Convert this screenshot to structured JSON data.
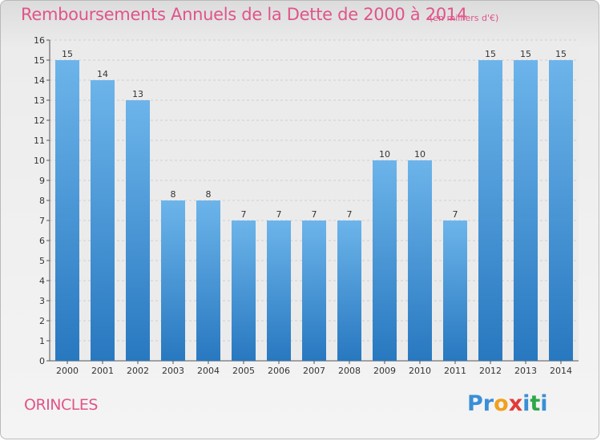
{
  "title": "Remboursements Annuels de la Dette de 2000 à 2014",
  "subtitle": "(en milliers d'€)",
  "commune": "ORINCLES",
  "logo": {
    "letters": [
      "P",
      "r",
      "o",
      "x",
      "i",
      "t",
      "i"
    ],
    "colors": [
      "#3a8fd6",
      "#3a8fd6",
      "#f0a020",
      "#e23a3a",
      "#3a8fd6",
      "#2ea84a",
      "#3a8fd6"
    ]
  },
  "colors": {
    "bar_top": "#6cb4ea",
    "bar_bottom": "#2878c0",
    "title": "#e0548a",
    "grid": "#cfcfcf"
  },
  "chart_data": {
    "type": "bar",
    "categories": [
      "2000",
      "2001",
      "2002",
      "2003",
      "2004",
      "2005",
      "2006",
      "2007",
      "2008",
      "2009",
      "2010",
      "2011",
      "2012",
      "2013",
      "2014"
    ],
    "values": [
      15,
      14,
      13,
      8,
      8,
      7,
      7,
      7,
      7,
      10,
      10,
      7,
      15,
      15,
      15
    ],
    "ylim": [
      0,
      16
    ],
    "yticks": [
      0,
      1,
      2,
      3,
      4,
      5,
      6,
      7,
      8,
      9,
      10,
      11,
      12,
      13,
      14,
      15,
      16
    ],
    "grid": "horizontal dashed",
    "data_labels": true
  }
}
